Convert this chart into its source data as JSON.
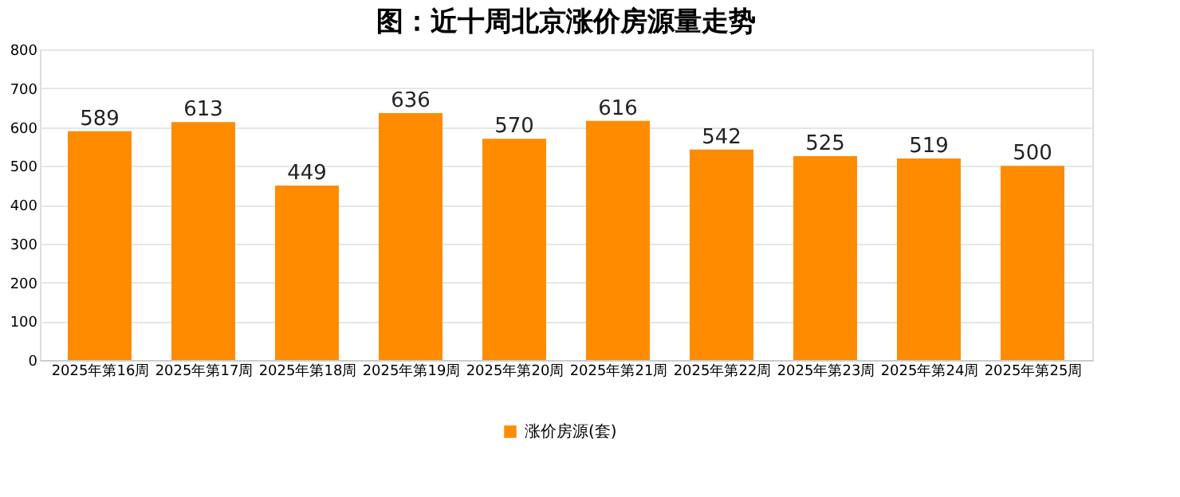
{
  "chart_data": {
    "type": "bar",
    "title": "图：近十周北京涨价房源量走势",
    "categories": [
      "2025年第16周",
      "2025年第17周",
      "2025年第18周",
      "2025年第19周",
      "2025年第20周",
      "2025年第21周",
      "2025年第22周",
      "2025年第23周",
      "2025年第24周",
      "2025年第25周"
    ],
    "series": [
      {
        "name": "涨价房源(套)",
        "color": "#ff8c00",
        "values": [
          589,
          613,
          449,
          636,
          570,
          616,
          542,
          525,
          519,
          500
        ]
      }
    ],
    "ylim": [
      0,
      800
    ],
    "yticks": [
      0,
      100,
      200,
      300,
      400,
      500,
      600,
      700,
      800
    ],
    "grid": "y",
    "legend": "bottom",
    "data_labels": true
  }
}
